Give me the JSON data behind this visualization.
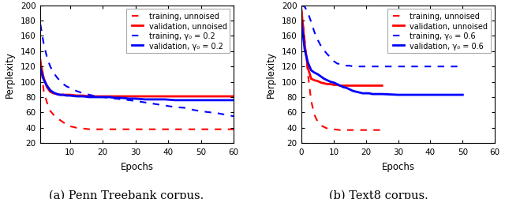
{
  "fig_width": 6.4,
  "fig_height": 2.53,
  "dpi": 100,
  "background_color": "#ffffff",
  "subplot_a": {
    "caption": "(a) Penn Treebank corpus.",
    "xlabel": "Epochs",
    "ylabel": "Perplexity",
    "xlim": [
      1,
      60
    ],
    "ylim": [
      20,
      200
    ],
    "yticks": [
      20,
      40,
      60,
      80,
      100,
      120,
      140,
      160,
      180,
      200
    ],
    "xticks": [
      10,
      20,
      30,
      40,
      50,
      60
    ],
    "legend_labels": [
      "training, unnoised",
      "validation, unnoised",
      "training, γ₀ = 0.2",
      "validation, γ₀ = 0.2"
    ],
    "train_unnoised_x": [
      1,
      2,
      3,
      4,
      5,
      6,
      7,
      8,
      9,
      10,
      12,
      14,
      16,
      18,
      20,
      25,
      30,
      35,
      40,
      45,
      50,
      55,
      60
    ],
    "train_unnoised_y": [
      130,
      88,
      73,
      62,
      57,
      53,
      50,
      47,
      44,
      42,
      40,
      39,
      38,
      38,
      38,
      38,
      38,
      38,
      38,
      38,
      38,
      38,
      38
    ],
    "val_unnoised_x": [
      1,
      2,
      3,
      4,
      5,
      6,
      7,
      8,
      9,
      10,
      12,
      14,
      16,
      18,
      20,
      25,
      30,
      35,
      40,
      45,
      48,
      55,
      60
    ],
    "val_unnoised_y": [
      125,
      105,
      93,
      87,
      85,
      84,
      83,
      83,
      83,
      83,
      82,
      82,
      81,
      81,
      81,
      81,
      81,
      81,
      81,
      81,
      81,
      81,
      81
    ],
    "train_noised_x": [
      1,
      2,
      3,
      4,
      5,
      6,
      7,
      8,
      9,
      10,
      12,
      14,
      16,
      18,
      20,
      22,
      24,
      26,
      28,
      30,
      33,
      36,
      39,
      42,
      45,
      48,
      51,
      55,
      60
    ],
    "train_noised_y": [
      175,
      150,
      132,
      120,
      112,
      106,
      101,
      97,
      94,
      92,
      88,
      85,
      83,
      81,
      80,
      79,
      78,
      77,
      76,
      75,
      73,
      71,
      69,
      67,
      66,
      63,
      61,
      59,
      55
    ],
    "val_noised_x": [
      1,
      2,
      3,
      4,
      5,
      6,
      7,
      8,
      9,
      10,
      12,
      14,
      16,
      18,
      20,
      22,
      24,
      26,
      28,
      30,
      33,
      36,
      39,
      42,
      45,
      48,
      51,
      55,
      60
    ],
    "val_noised_y": [
      118,
      103,
      95,
      89,
      86,
      84,
      83,
      83,
      82,
      82,
      81,
      81,
      80,
      80,
      80,
      80,
      79,
      79,
      78,
      78,
      77,
      77,
      77,
      76,
      76,
      76,
      76,
      76,
      76
    ]
  },
  "subplot_b": {
    "caption": "(b) Text8 corpus.",
    "xlabel": "Epochs",
    "ylabel": "Perplexity",
    "xlim": [
      0,
      60
    ],
    "ylim": [
      20,
      200
    ],
    "yticks": [
      20,
      40,
      60,
      80,
      100,
      120,
      140,
      160,
      180,
      200
    ],
    "xticks": [
      0,
      10,
      20,
      30,
      40,
      50,
      60
    ],
    "legend_labels": [
      "training, unnoised",
      "validation, unnoised",
      "training, γ₀ = 0.6",
      "validation, γ₀ = 0.6"
    ],
    "train_unnoised_x": [
      0,
      1,
      2,
      3,
      4,
      5,
      6,
      7,
      8,
      9,
      10,
      12,
      14,
      16,
      18,
      20,
      22,
      24,
      25
    ],
    "train_unnoised_y": [
      193,
      155,
      110,
      75,
      57,
      48,
      43,
      41,
      39,
      38,
      38,
      37,
      37,
      37,
      37,
      37,
      37,
      37,
      37
    ],
    "val_unnoised_x": [
      0,
      1,
      2,
      3,
      4,
      5,
      6,
      7,
      8,
      9,
      10,
      11,
      12,
      13,
      14,
      15,
      16,
      17,
      18,
      19,
      20,
      21,
      22,
      23,
      24,
      25
    ],
    "val_unnoised_y": [
      193,
      148,
      118,
      104,
      102,
      101,
      99,
      98,
      97,
      97,
      96,
      96,
      95,
      95,
      95,
      95,
      95,
      95,
      95,
      95,
      95,
      95,
      95,
      95,
      95,
      95
    ],
    "train_noised_x": [
      0,
      1,
      2,
      3,
      4,
      5,
      6,
      7,
      8,
      9,
      10,
      11,
      12,
      13,
      14,
      15,
      16,
      17,
      18,
      19,
      20,
      21,
      22,
      23,
      24,
      25,
      30,
      35,
      40,
      45,
      50
    ],
    "train_noised_y": [
      200,
      198,
      190,
      178,
      165,
      155,
      147,
      141,
      136,
      132,
      127,
      124,
      123,
      122,
      121,
      121,
      120,
      120,
      120,
      120,
      120,
      120,
      120,
      120,
      120,
      120,
      120,
      120,
      120,
      120,
      120
    ],
    "val_noised_x": [
      0,
      1,
      2,
      3,
      4,
      5,
      6,
      7,
      8,
      9,
      10,
      11,
      12,
      13,
      14,
      15,
      16,
      17,
      18,
      19,
      20,
      21,
      22,
      23,
      24,
      25,
      30,
      35,
      40,
      45,
      50
    ],
    "val_noised_y": [
      178,
      142,
      125,
      115,
      112,
      110,
      107,
      104,
      102,
      100,
      99,
      97,
      95,
      93,
      92,
      90,
      88,
      87,
      86,
      85,
      85,
      85,
      84,
      84,
      84,
      84,
      83,
      83,
      83,
      83,
      83
    ]
  },
  "color_red": "#ff0000",
  "color_blue": "#0000ff",
  "linewidth_solid": 2.0,
  "linewidth_dashed": 1.5,
  "legend_fontsize": 7.0,
  "axis_fontsize": 8.5,
  "tick_fontsize": 7.5,
  "caption_fontsize": 10.5
}
